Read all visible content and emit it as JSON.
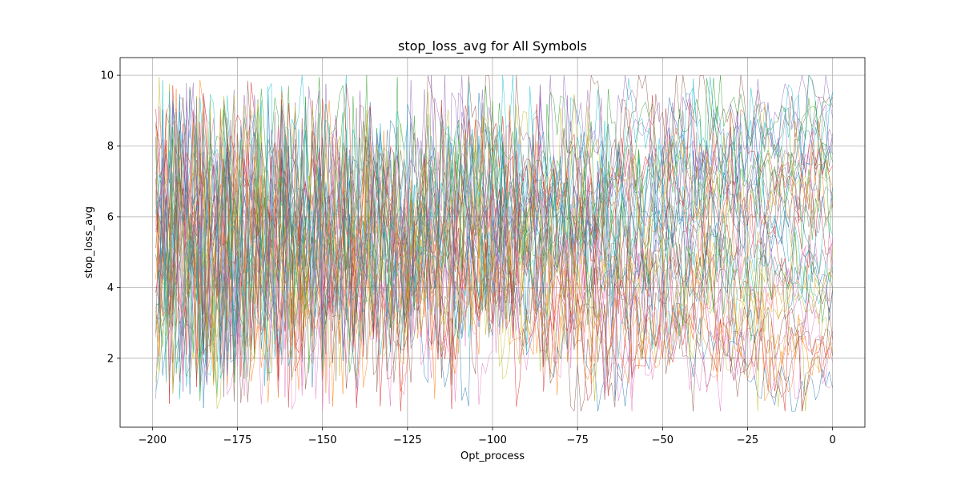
{
  "chart_data": {
    "type": "line",
    "title": "stop_loss_avg for All Symbols",
    "xlabel": "Opt_process",
    "ylabel": "stop_loss_avg",
    "xlim": [
      -209.5,
      9.5
    ],
    "ylim": [
      0.05,
      10.5
    ],
    "x_range": [
      -199,
      0
    ],
    "x_ticks": [
      -200,
      -175,
      -150,
      -125,
      -100,
      -75,
      -50,
      -25,
      0
    ],
    "y_ticks": [
      2,
      4,
      6,
      8,
      10
    ],
    "grid": true,
    "legend": "none",
    "series_count": 40,
    "value_range": [
      0.5,
      10
    ],
    "palette": [
      "#1f77b4",
      "#ff7f0e",
      "#2ca02c",
      "#d62728",
      "#9467bd",
      "#8c564b",
      "#e377c2",
      "#7f7f7f",
      "#bcbd22",
      "#17becf"
    ]
  }
}
